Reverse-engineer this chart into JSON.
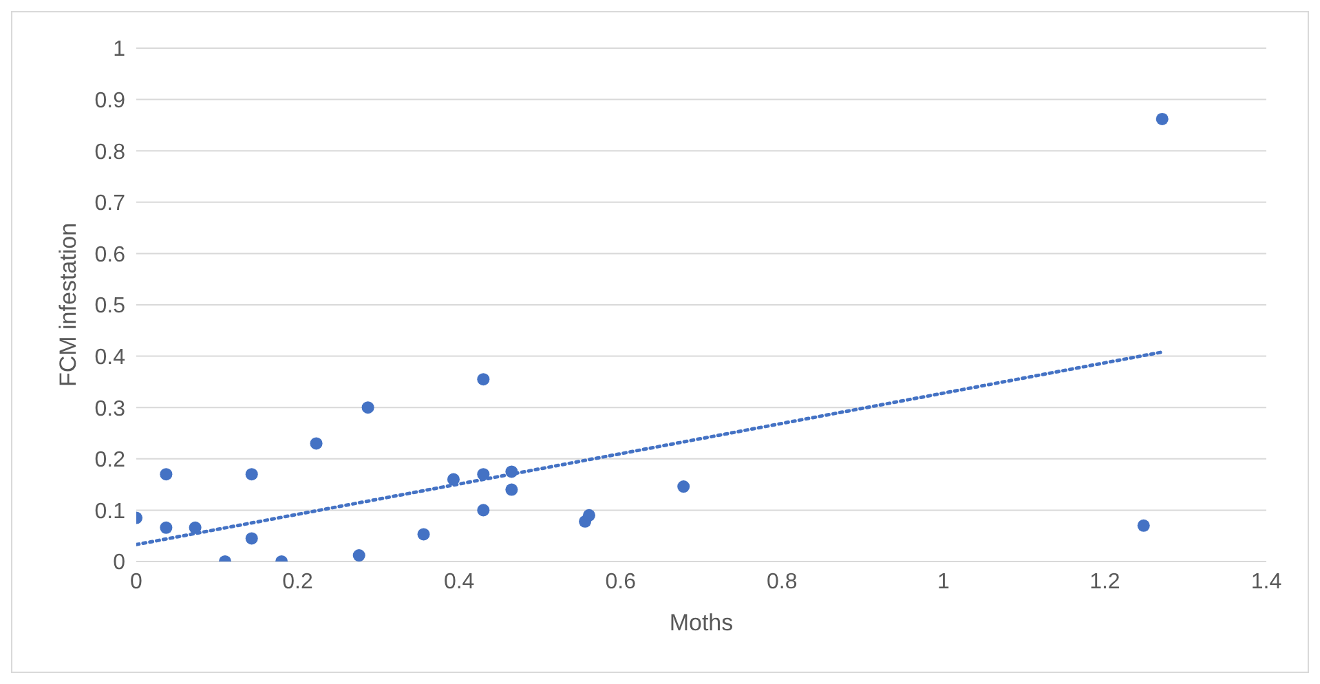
{
  "chart_data": {
    "type": "scatter",
    "xlabel": "Moths",
    "ylabel": "FCM infestation",
    "xlim": [
      0,
      1.4
    ],
    "xticks": [
      0,
      0.2,
      0.4,
      0.6,
      0.8,
      1,
      1.2,
      1.4
    ],
    "ylim": [
      0,
      1
    ],
    "yticks": [
      0,
      0.1,
      0.2,
      0.3,
      0.4,
      0.5,
      0.6,
      0.7,
      0.8,
      0.9,
      1
    ],
    "grid": "y",
    "series": [
      {
        "marker": "circle",
        "color": "#4472c4",
        "x": [
          0,
          0.037,
          0.037,
          0.073,
          0.11,
          0.143,
          0.143,
          0.18,
          0.223,
          0.276,
          0.287,
          0.356,
          0.393,
          0.43,
          0.43,
          0.43,
          0.465,
          0.465,
          0.556,
          0.561,
          0.678,
          1.248,
          1.271
        ],
        "values": [
          0.085,
          0.066,
          0.17,
          0.066,
          0,
          0.17,
          0.045,
          0,
          0.23,
          0.012,
          0.3,
          0.053,
          0.16,
          0.355,
          0.17,
          0.1,
          0.175,
          0.14,
          0.078,
          0.09,
          0.146,
          0.07,
          0.862
        ]
      },
      {
        "type": "line",
        "marker": "none",
        "color": "#4472c4",
        "line_style": "dotted",
        "x": [
          0,
          1.271
        ],
        "values": [
          0.033,
          0.408
        ]
      }
    ]
  }
}
